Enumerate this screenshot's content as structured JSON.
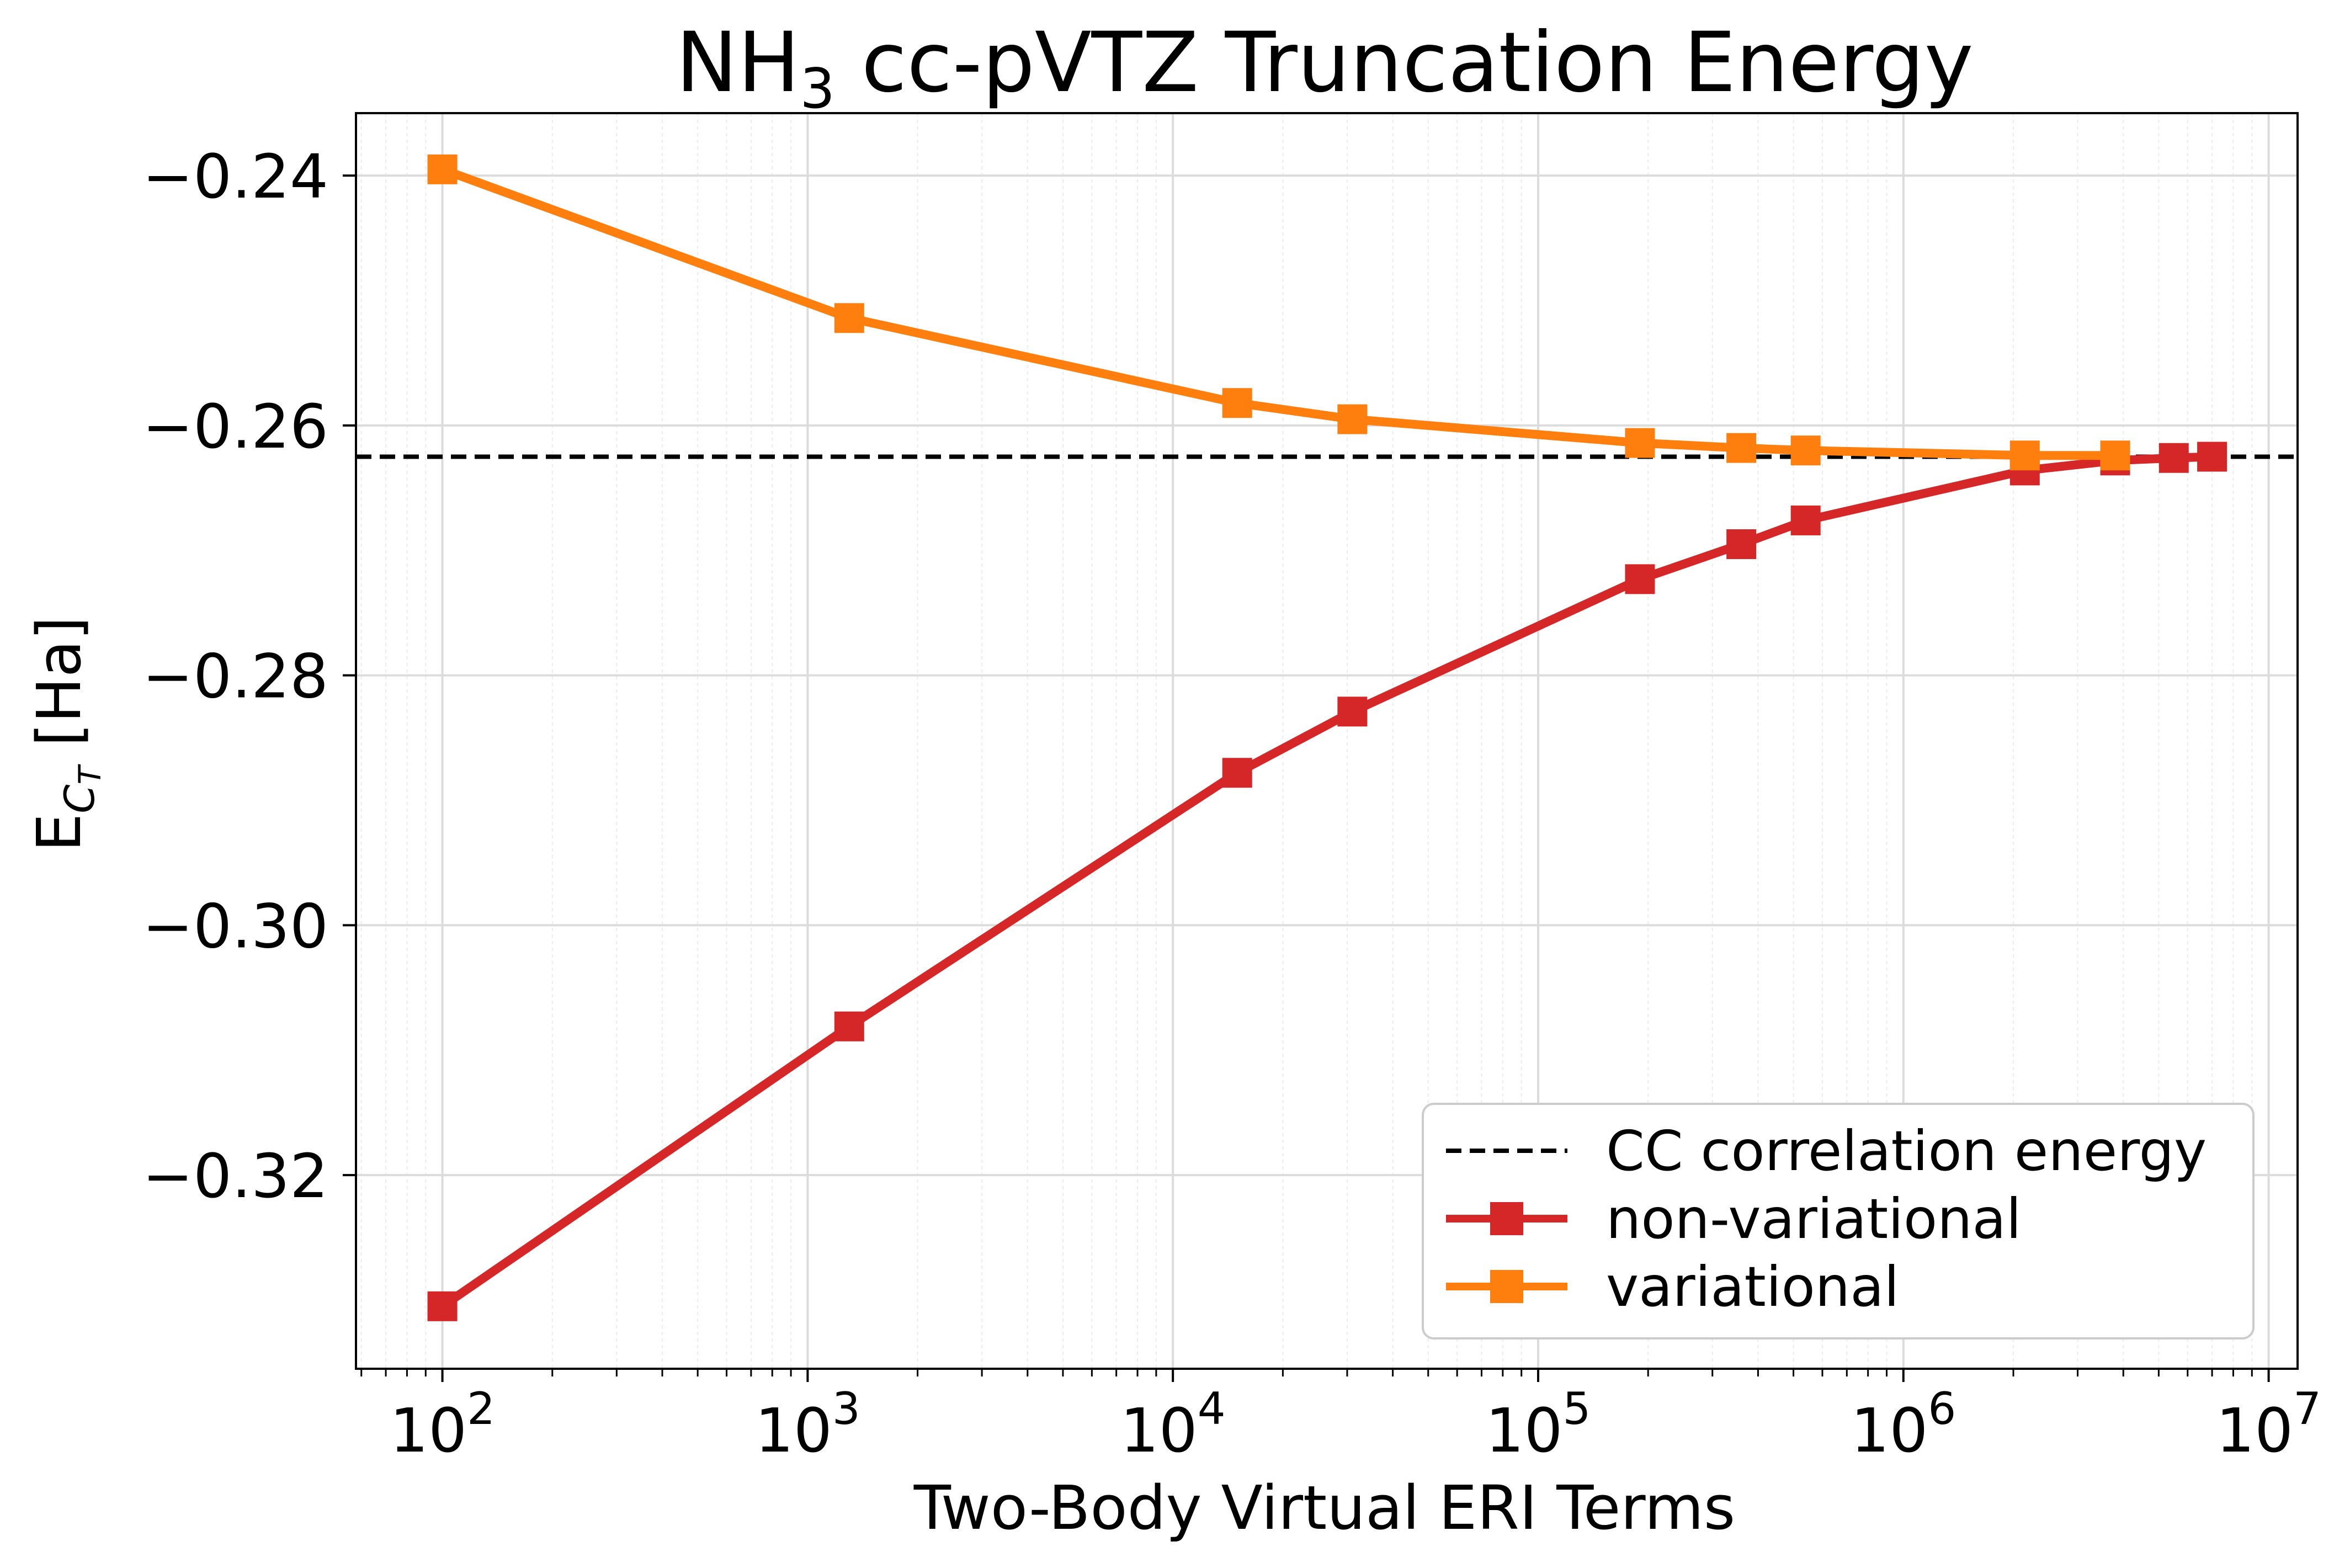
{
  "chart_data": {
    "type": "line",
    "title": "NH3 cc-pVTZ Truncation Energy",
    "title_parts": {
      "prefix": "NH",
      "subscript": "3",
      "suffix": " cc-pVTZ Truncation Energy"
    },
    "xlabel": "Two-Body Virtual ERI Terms",
    "ylabel": "E_{C_T} [Ha]",
    "ylabel_parts": {
      "base": "E",
      "sub": "C",
      "subsub": "T",
      "suffix": " [Ha]"
    },
    "xscale": "log",
    "xlim": [
      58,
      12000000
    ],
    "ylim": [
      -0.3355,
      -0.235
    ],
    "x_ticks": [
      {
        "value": 100,
        "base": "10",
        "exp": "2"
      },
      {
        "value": 1000,
        "base": "10",
        "exp": "3"
      },
      {
        "value": 10000,
        "base": "10",
        "exp": "4"
      },
      {
        "value": 100000,
        "base": "10",
        "exp": "5"
      },
      {
        "value": 1000000,
        "base": "10",
        "exp": "6"
      },
      {
        "value": 10000000,
        "base": "10",
        "exp": "7"
      }
    ],
    "y_ticks": [
      {
        "value": -0.24,
        "label": "−0.24"
      },
      {
        "value": -0.26,
        "label": "−0.26"
      },
      {
        "value": -0.28,
        "label": "−0.28"
      },
      {
        "value": -0.3,
        "label": "−0.30"
      },
      {
        "value": -0.32,
        "label": "−0.32"
      }
    ],
    "grid": true,
    "legend_position": "lower-right",
    "reference_line": {
      "name": "CC correlation energy",
      "y": -0.2625,
      "color": "#000000",
      "style": "dashed"
    },
    "series": [
      {
        "name": "non-variational",
        "color": "#d62728",
        "marker": "square",
        "x": [
          100,
          1300,
          15000,
          31000,
          190000,
          360000,
          540000,
          2150000,
          3800000,
          5500000,
          7000000
        ],
        "y": [
          -0.3305,
          -0.3081,
          -0.2878,
          -0.2829,
          -0.2723,
          -0.2695,
          -0.2676,
          -0.2636,
          -0.2628,
          -0.2626,
          -0.2625
        ]
      },
      {
        "name": "variational",
        "color": "#ff7f0e",
        "marker": "square",
        "x": [
          100,
          1300,
          15000,
          31000,
          190000,
          360000,
          540000,
          2150000,
          3800000
        ],
        "y": [
          -0.2395,
          -0.2514,
          -0.2582,
          -0.2595,
          -0.2614,
          -0.2618,
          -0.262,
          -0.2624,
          -0.2624
        ]
      }
    ]
  }
}
